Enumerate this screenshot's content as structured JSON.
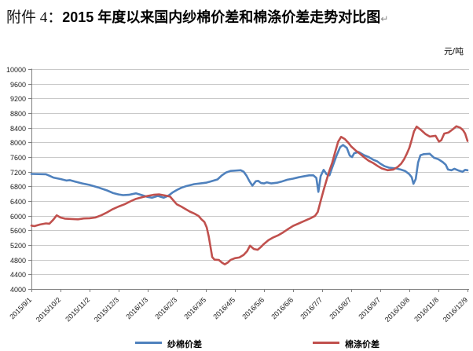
{
  "page": {
    "attachment_label": "附件 4：",
    "title": "2015 年度以来国内纱棉价差和棉涤价差走势对比图",
    "paragraph_mark": "↵",
    "unit_label": "元/吨"
  },
  "colors": {
    "series_blue": "#4F81BD",
    "series_red": "#C0504D",
    "gridline": "#c9c9c9",
    "axis": "#808080",
    "tick_text": "#1a1a1a"
  },
  "chart_data": {
    "type": "line",
    "title": "2015 年度以来国内纱棉价差和棉涤价差走势对比图",
    "ylabel": "元/吨",
    "xlabel": "",
    "grid": true,
    "legend_position": "bottom",
    "ylim": [
      4000,
      10000
    ],
    "ytick_step": 400,
    "ytick_labels": [
      "4000",
      "4400",
      "4800",
      "5200",
      "5600",
      "6000",
      "6400",
      "6800",
      "7200",
      "7600",
      "8000",
      "8400",
      "8800",
      "9200",
      "9600",
      "10000"
    ],
    "x_tick_labels": [
      "2015/9/1",
      "2015/10/2",
      "2015/11/2",
      "2015/12/3",
      "2016/1/3",
      "2016/2/3",
      "2016/3/5",
      "2016/4/5",
      "2016/5/6",
      "2016/6/6",
      "2016/7/7",
      "2016/8/7",
      "2016/9/7",
      "2016/10/8",
      "2016/11/8",
      "2016/12/9"
    ],
    "x_unit_note": "x value is in tick units: 0 = 2015/9/1 ... 15 = 2016/12/9, ~31 days per unit",
    "series": [
      {
        "name": "纱棉价差",
        "color": "#4F81BD",
        "points": [
          [
            0,
            7140
          ],
          [
            0.5,
            7130
          ],
          [
            0.62,
            7090
          ],
          [
            0.75,
            7040
          ],
          [
            1,
            7000
          ],
          [
            1.2,
            6960
          ],
          [
            1.32,
            6970
          ],
          [
            1.5,
            6930
          ],
          [
            1.75,
            6880
          ],
          [
            2,
            6840
          ],
          [
            2.3,
            6770
          ],
          [
            2.6,
            6690
          ],
          [
            2.8,
            6620
          ],
          [
            3,
            6580
          ],
          [
            3.15,
            6560
          ],
          [
            3.35,
            6570
          ],
          [
            3.6,
            6610
          ],
          [
            3.8,
            6560
          ],
          [
            4,
            6510
          ],
          [
            4.15,
            6490
          ],
          [
            4.35,
            6540
          ],
          [
            4.55,
            6490
          ],
          [
            4.72,
            6550
          ],
          [
            4.85,
            6630
          ],
          [
            5,
            6700
          ],
          [
            5.15,
            6760
          ],
          [
            5.3,
            6800
          ],
          [
            5.6,
            6860
          ],
          [
            6,
            6900
          ],
          [
            6.15,
            6930
          ],
          [
            6.4,
            6990
          ],
          [
            6.55,
            7100
          ],
          [
            6.7,
            7180
          ],
          [
            6.85,
            7220
          ],
          [
            7,
            7230
          ],
          [
            7.2,
            7240
          ],
          [
            7.3,
            7200
          ],
          [
            7.4,
            7090
          ],
          [
            7.5,
            6940
          ],
          [
            7.6,
            6820
          ],
          [
            7.72,
            6940
          ],
          [
            7.8,
            6950
          ],
          [
            7.9,
            6890
          ],
          [
            8,
            6880
          ],
          [
            8.1,
            6910
          ],
          [
            8.25,
            6880
          ],
          [
            8.45,
            6900
          ],
          [
            8.6,
            6930
          ],
          [
            8.8,
            6980
          ],
          [
            9,
            7010
          ],
          [
            9.2,
            7050
          ],
          [
            9.4,
            7080
          ],
          [
            9.55,
            7100
          ],
          [
            9.7,
            7100
          ],
          [
            9.8,
            7030
          ],
          [
            9.87,
            6650
          ],
          [
            9.95,
            7080
          ],
          [
            10.05,
            7250
          ],
          [
            10.15,
            7130
          ],
          [
            10.25,
            7100
          ],
          [
            10.35,
            7320
          ],
          [
            10.5,
            7650
          ],
          [
            10.62,
            7870
          ],
          [
            10.72,
            7930
          ],
          [
            10.85,
            7850
          ],
          [
            10.95,
            7640
          ],
          [
            11.03,
            7600
          ],
          [
            11.1,
            7700
          ],
          [
            11.25,
            7740
          ],
          [
            11.45,
            7650
          ],
          [
            11.6,
            7600
          ],
          [
            11.75,
            7530
          ],
          [
            11.9,
            7480
          ],
          [
            12,
            7420
          ],
          [
            12.15,
            7350
          ],
          [
            12.3,
            7310
          ],
          [
            12.55,
            7290
          ],
          [
            12.7,
            7260
          ],
          [
            12.85,
            7220
          ],
          [
            13,
            7130
          ],
          [
            13.08,
            7050
          ],
          [
            13.14,
            6870
          ],
          [
            13.22,
            7000
          ],
          [
            13.3,
            7450
          ],
          [
            13.38,
            7650
          ],
          [
            13.5,
            7680
          ],
          [
            13.7,
            7690
          ],
          [
            13.85,
            7580
          ],
          [
            14,
            7540
          ],
          [
            14.15,
            7460
          ],
          [
            14.25,
            7390
          ],
          [
            14.33,
            7260
          ],
          [
            14.45,
            7240
          ],
          [
            14.55,
            7280
          ],
          [
            14.7,
            7230
          ],
          [
            14.83,
            7200
          ],
          [
            14.92,
            7250
          ],
          [
            15,
            7240
          ]
        ]
      },
      {
        "name": "棉涤价差",
        "color": "#C0504D",
        "points": [
          [
            0,
            5730
          ],
          [
            0.1,
            5715
          ],
          [
            0.3,
            5760
          ],
          [
            0.5,
            5790
          ],
          [
            0.62,
            5780
          ],
          [
            0.75,
            5890
          ],
          [
            0.87,
            6010
          ],
          [
            1,
            5950
          ],
          [
            1.15,
            5920
          ],
          [
            1.4,
            5910
          ],
          [
            1.6,
            5900
          ],
          [
            1.8,
            5925
          ],
          [
            2,
            5930
          ],
          [
            2.2,
            5950
          ],
          [
            2.4,
            6010
          ],
          [
            2.6,
            6090
          ],
          [
            2.8,
            6180
          ],
          [
            3,
            6250
          ],
          [
            3.2,
            6310
          ],
          [
            3.4,
            6390
          ],
          [
            3.6,
            6460
          ],
          [
            3.8,
            6500
          ],
          [
            4,
            6540
          ],
          [
            4.2,
            6570
          ],
          [
            4.4,
            6580
          ],
          [
            4.6,
            6550
          ],
          [
            4.77,
            6520
          ],
          [
            4.9,
            6400
          ],
          [
            5,
            6310
          ],
          [
            5.15,
            6250
          ],
          [
            5.3,
            6180
          ],
          [
            5.45,
            6110
          ],
          [
            5.6,
            6060
          ],
          [
            5.75,
            5990
          ],
          [
            5.85,
            5900
          ],
          [
            5.95,
            5830
          ],
          [
            6.03,
            5680
          ],
          [
            6.1,
            5430
          ],
          [
            6.16,
            5150
          ],
          [
            6.22,
            4870
          ],
          [
            6.3,
            4800
          ],
          [
            6.45,
            4790
          ],
          [
            6.55,
            4720
          ],
          [
            6.65,
            4670
          ],
          [
            6.75,
            4720
          ],
          [
            6.85,
            4790
          ],
          [
            7,
            4840
          ],
          [
            7.15,
            4860
          ],
          [
            7.3,
            4930
          ],
          [
            7.42,
            5030
          ],
          [
            7.52,
            5180
          ],
          [
            7.65,
            5090
          ],
          [
            7.78,
            5070
          ],
          [
            7.9,
            5150
          ],
          [
            8,
            5230
          ],
          [
            8.15,
            5330
          ],
          [
            8.3,
            5400
          ],
          [
            8.5,
            5470
          ],
          [
            8.65,
            5540
          ],
          [
            8.8,
            5620
          ],
          [
            9,
            5720
          ],
          [
            9.2,
            5790
          ],
          [
            9.4,
            5860
          ],
          [
            9.6,
            5930
          ],
          [
            9.75,
            5990
          ],
          [
            9.85,
            6100
          ],
          [
            9.95,
            6400
          ],
          [
            10.05,
            6700
          ],
          [
            10.15,
            6970
          ],
          [
            10.25,
            7230
          ],
          [
            10.35,
            7450
          ],
          [
            10.45,
            7740
          ],
          [
            10.55,
            8020
          ],
          [
            10.65,
            8150
          ],
          [
            10.78,
            8090
          ],
          [
            10.9,
            7990
          ],
          [
            11,
            7890
          ],
          [
            11.15,
            7780
          ],
          [
            11.3,
            7690
          ],
          [
            11.45,
            7590
          ],
          [
            11.6,
            7500
          ],
          [
            11.75,
            7440
          ],
          [
            11.9,
            7360
          ],
          [
            12.05,
            7290
          ],
          [
            12.25,
            7240
          ],
          [
            12.45,
            7260
          ],
          [
            12.6,
            7330
          ],
          [
            12.72,
            7420
          ],
          [
            12.82,
            7540
          ],
          [
            12.92,
            7700
          ],
          [
            13,
            7850
          ],
          [
            13.08,
            8070
          ],
          [
            13.16,
            8300
          ],
          [
            13.25,
            8430
          ],
          [
            13.4,
            8340
          ],
          [
            13.55,
            8230
          ],
          [
            13.7,
            8160
          ],
          [
            13.9,
            8180
          ],
          [
            14.02,
            8020
          ],
          [
            14.1,
            8060
          ],
          [
            14.2,
            8240
          ],
          [
            14.35,
            8270
          ],
          [
            14.5,
            8360
          ],
          [
            14.62,
            8440
          ],
          [
            14.75,
            8400
          ],
          [
            14.85,
            8330
          ],
          [
            14.92,
            8240
          ],
          [
            15,
            8040
          ]
        ]
      }
    ]
  }
}
